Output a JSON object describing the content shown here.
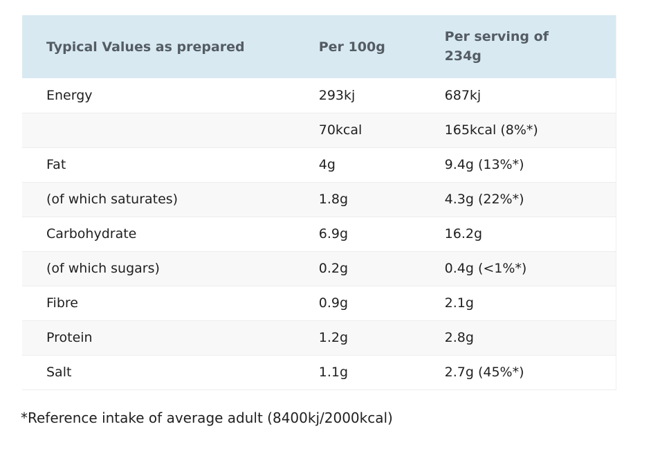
{
  "chart_data": {
    "type": "table",
    "title": "Typical Values as prepared",
    "columns": [
      "Typical Values as prepared",
      "Per 100g",
      "Per serving of 234g"
    ],
    "rows": [
      {
        "label": "Energy",
        "per_100g": "293kj",
        "per_serving": "687kj"
      },
      {
        "label": "",
        "per_100g": "70kcal",
        "per_serving": "165kcal (8%*)"
      },
      {
        "label": "Fat",
        "per_100g": "4g",
        "per_serving": "9.4g (13%*)"
      },
      {
        "label": "(of which saturates)",
        "per_100g": "1.8g",
        "per_serving": "4.3g (22%*)"
      },
      {
        "label": "Carbohydrate",
        "per_100g": "6.9g",
        "per_serving": "16.2g"
      },
      {
        "label": "(of which sugars)",
        "per_100g": "0.2g",
        "per_serving": "0.4g (<1%*)"
      },
      {
        "label": "Fibre",
        "per_100g": "0.9g",
        "per_serving": "2.1g"
      },
      {
        "label": "Protein",
        "per_100g": "1.2g",
        "per_serving": "2.8g"
      },
      {
        "label": "Salt",
        "per_100g": "1.1g",
        "per_serving": "2.7g (45%*)"
      }
    ],
    "footnote": "*Reference intake of average adult (8400kj/2000kcal)",
    "serving_size": "234g",
    "reference_intake": "8400kj/2000kcal"
  },
  "colors": {
    "header_bg": "#d8e9f2",
    "header_text": "#545c63",
    "row_bg": "#ffffff",
    "row_alt_bg": "#f8f8f8",
    "divider": "#ededed",
    "body_text": "#1f1f1f",
    "page_bg": "#ffffff"
  }
}
